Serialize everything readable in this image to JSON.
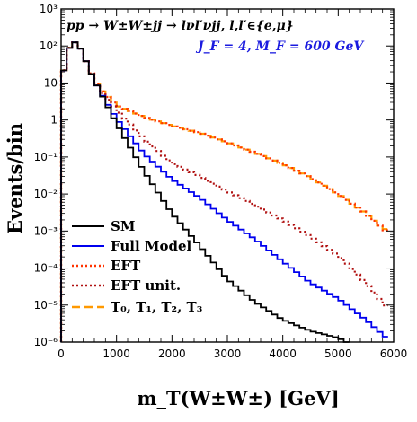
{
  "chart_data": {
    "type": "line",
    "title": "",
    "process_label": "pp → W±W±jj → lνl′νjj, l,l′∈{e,μ}",
    "params_label": "J_F = 4, M_F = 600 GeV",
    "xlabel": "m_T(W±W±) [GeV]",
    "ylabel": "Events/bin",
    "xlim": [
      0,
      6000
    ],
    "ylim": [
      1e-06,
      1000
    ],
    "yscale": "log",
    "grid": false,
    "legend_position": "bottom-left",
    "x_ticks": [
      "0",
      "1000",
      "2000",
      "3000",
      "4000",
      "5000",
      "6000"
    ],
    "y_ticks": [
      "10⁻⁶",
      "10⁻⁵",
      "10⁻⁴",
      "10⁻³",
      "10⁻²",
      "10⁻¹",
      "1",
      "10",
      "10²",
      "10³"
    ],
    "y_tick_values": [
      1e-06,
      1e-05,
      0.0001,
      0.001,
      0.01,
      0.1,
      1,
      10,
      100,
      1000
    ],
    "series": [
      {
        "name": "SM",
        "color": "#000000",
        "style": "solid",
        "x": [
          0,
          100,
          200,
          300,
          400,
          500,
          700,
          1000,
          1500,
          2000,
          2500,
          3000,
          3500,
          4000,
          4500,
          5000,
          5200
        ],
        "y": [
          8,
          60,
          130,
          120,
          60,
          25,
          6,
          0.8,
          0.04,
          0.003,
          0.0004,
          5e-05,
          1.2e-05,
          4e-06,
          2e-06,
          1.3e-06,
          9e-07
        ]
      },
      {
        "name": "Full Model",
        "color": "#0000ee",
        "style": "solid",
        "x": [
          0,
          100,
          200,
          300,
          400,
          500,
          700,
          1000,
          1500,
          2000,
          2500,
          3000,
          3500,
          4000,
          4500,
          5000,
          5500,
          5900
        ],
        "y": [
          8,
          60,
          130,
          120,
          60,
          25,
          6,
          1.1,
          0.12,
          0.025,
          0.008,
          0.002,
          0.0006,
          0.00015,
          4e-05,
          1.5e-05,
          4e-06,
          1.2e-06
        ]
      },
      {
        "name": "EFT",
        "color": "#ff3300",
        "style": "dotted",
        "x": [
          0,
          100,
          200,
          300,
          400,
          500,
          700,
          1000,
          1500,
          2000,
          2500,
          3000,
          3500,
          4000,
          4500,
          5000,
          5500,
          5800,
          5950
        ],
        "y": [
          8,
          60,
          130,
          120,
          60,
          25,
          7,
          2.5,
          1.2,
          0.7,
          0.45,
          0.25,
          0.13,
          0.065,
          0.028,
          0.01,
          0.003,
          0.0012,
          0.0008
        ]
      },
      {
        "name": "EFT unit.",
        "color": "#b01010",
        "style": "dotted",
        "x": [
          0,
          100,
          200,
          300,
          400,
          500,
          700,
          1000,
          1500,
          2000,
          2500,
          3000,
          3500,
          4000,
          4500,
          5000,
          5500,
          5900
        ],
        "y": [
          8,
          60,
          130,
          120,
          60,
          25,
          6.5,
          1.9,
          0.3,
          0.07,
          0.03,
          0.012,
          0.005,
          0.002,
          0.0007,
          0.00022,
          4e-05,
          8e-06
        ]
      },
      {
        "name": "T₀, T₁, T₂, T₃",
        "color": "#ff9900",
        "style": "dashed",
        "x": [
          0,
          100,
          200,
          300,
          400,
          500,
          700,
          1000,
          1500,
          2000,
          2500,
          3000,
          3500,
          4000,
          4500,
          5000,
          5500,
          5800,
          5950
        ],
        "y": [
          8,
          60,
          130,
          120,
          60,
          25,
          7,
          2.5,
          1.2,
          0.7,
          0.45,
          0.25,
          0.13,
          0.065,
          0.028,
          0.01,
          0.003,
          0.0012,
          0.001
        ]
      }
    ]
  }
}
